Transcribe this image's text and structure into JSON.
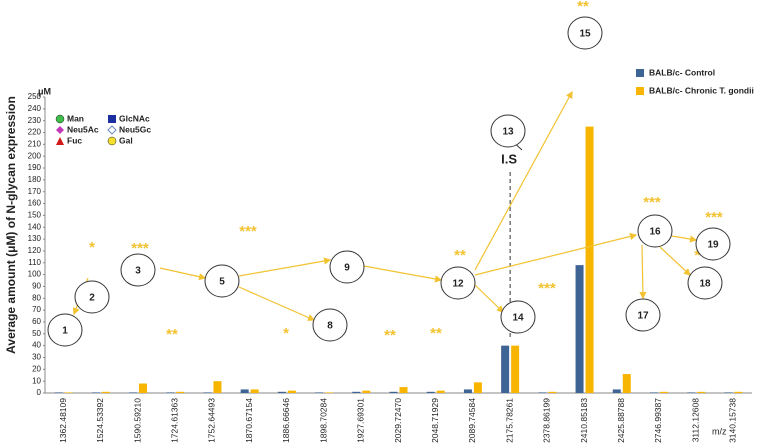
{
  "chart_data": {
    "type": "bar",
    "y_unit": "μM",
    "y_label": "Average amount (μM) of N-glycan expression",
    "x_label": "m/z",
    "categories": [
      "1362.48109",
      "1524.53392",
      "1590.59210",
      "1724.61363",
      "1752.64493",
      "1870.67154",
      "1886.66646",
      "1898.70284",
      "1927.69301",
      "2029.72470",
      "2048.71929",
      "2089.74584",
      "2175.78261",
      "2378.86199",
      "2410.85183",
      "2425.88788",
      "2746.99387",
      "3112.12608",
      "3140.15738"
    ],
    "series": [
      {
        "name": "BALB/c- Control",
        "color": "#3d6494",
        "values": [
          0.5,
          0.5,
          0.5,
          0.5,
          0.5,
          3,
          1,
          0.5,
          1,
          1,
          1,
          3,
          40,
          0.5,
          108,
          3,
          0.5,
          0.5,
          0.5
        ]
      },
      {
        "name": "BALB/c- Chronic T. gondii",
        "color": "#f7b500",
        "values": [
          0.5,
          1,
          8,
          1,
          10,
          3,
          2,
          0.5,
          2,
          5,
          2,
          9,
          40,
          1,
          225,
          16,
          1,
          1,
          1
        ]
      }
    ],
    "significance": [
      null,
      "*",
      "***",
      "**",
      "***",
      null,
      "*",
      null,
      null,
      "**",
      "**",
      "**",
      null,
      "***",
      "**",
      "***",
      "***",
      null,
      "***"
    ],
    "structure_labels": [
      "1",
      "2",
      "3",
      "5",
      "8",
      "9",
      "12",
      "13",
      "14",
      "15",
      "16",
      "17",
      "18",
      "19"
    ],
    "internal_standard": "I.S",
    "glycan_legend": [
      "Man",
      "GlcNAc",
      "Neu5Ac",
      "Neu5Gc",
      "Fuc",
      "Gal"
    ],
    "ylim": [
      0,
      250
    ],
    "yticks": [
      0,
      10,
      20,
      30,
      40,
      50,
      60,
      70,
      80,
      90,
      100,
      110,
      120,
      130,
      140,
      150,
      160,
      170,
      180,
      190,
      200,
      210,
      220,
      230,
      240,
      250
    ],
    "grid": false
  }
}
